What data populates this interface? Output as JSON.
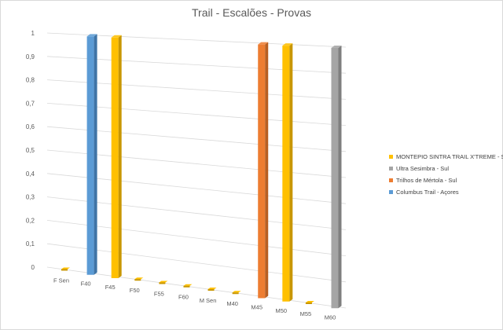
{
  "chart_data": {
    "type": "bar",
    "title": "Trail - Escalões - Provas",
    "categories": [
      "F Sen",
      "F40",
      "F45",
      "F50",
      "F55",
      "F60",
      "M Sen",
      "M40",
      "M45",
      "M50",
      "M55",
      "M60"
    ],
    "y_ticks": [
      "0",
      "0,1",
      "0,2",
      "0,3",
      "0,4",
      "0,5",
      "0,6",
      "0,7",
      "0,8",
      "0,9",
      "1"
    ],
    "ylim": [
      0,
      1
    ],
    "grid": true,
    "legend_position": "right",
    "series": [
      {
        "name": "MONTEPIO SINTRA TRAIL X'TREME - Sul",
        "color": "#ffc000",
        "side": "#c89600",
        "values": [
          0,
          0,
          1,
          0,
          0,
          0,
          0,
          0,
          0,
          1,
          0,
          0
        ]
      },
      {
        "name": "Ultra Sesimbra - Sul",
        "color": "#a5a5a5",
        "side": "#7f7f7f",
        "values": [
          0,
          0,
          0,
          0,
          0,
          0,
          0,
          0,
          0,
          0,
          0,
          1
        ]
      },
      {
        "name": "Trilhos de Mértola - Sul",
        "color": "#ed7d31",
        "side": "#b85f22",
        "values": [
          0,
          0,
          0,
          0,
          0,
          0,
          0,
          0,
          1,
          0,
          0,
          0
        ]
      },
      {
        "name": "Columbus Trail - Açores",
        "color": "#5b9bd5",
        "side": "#3f74a6",
        "values": [
          0,
          1,
          0,
          0,
          0,
          0,
          0,
          0,
          0,
          0,
          0,
          0
        ]
      }
    ]
  }
}
